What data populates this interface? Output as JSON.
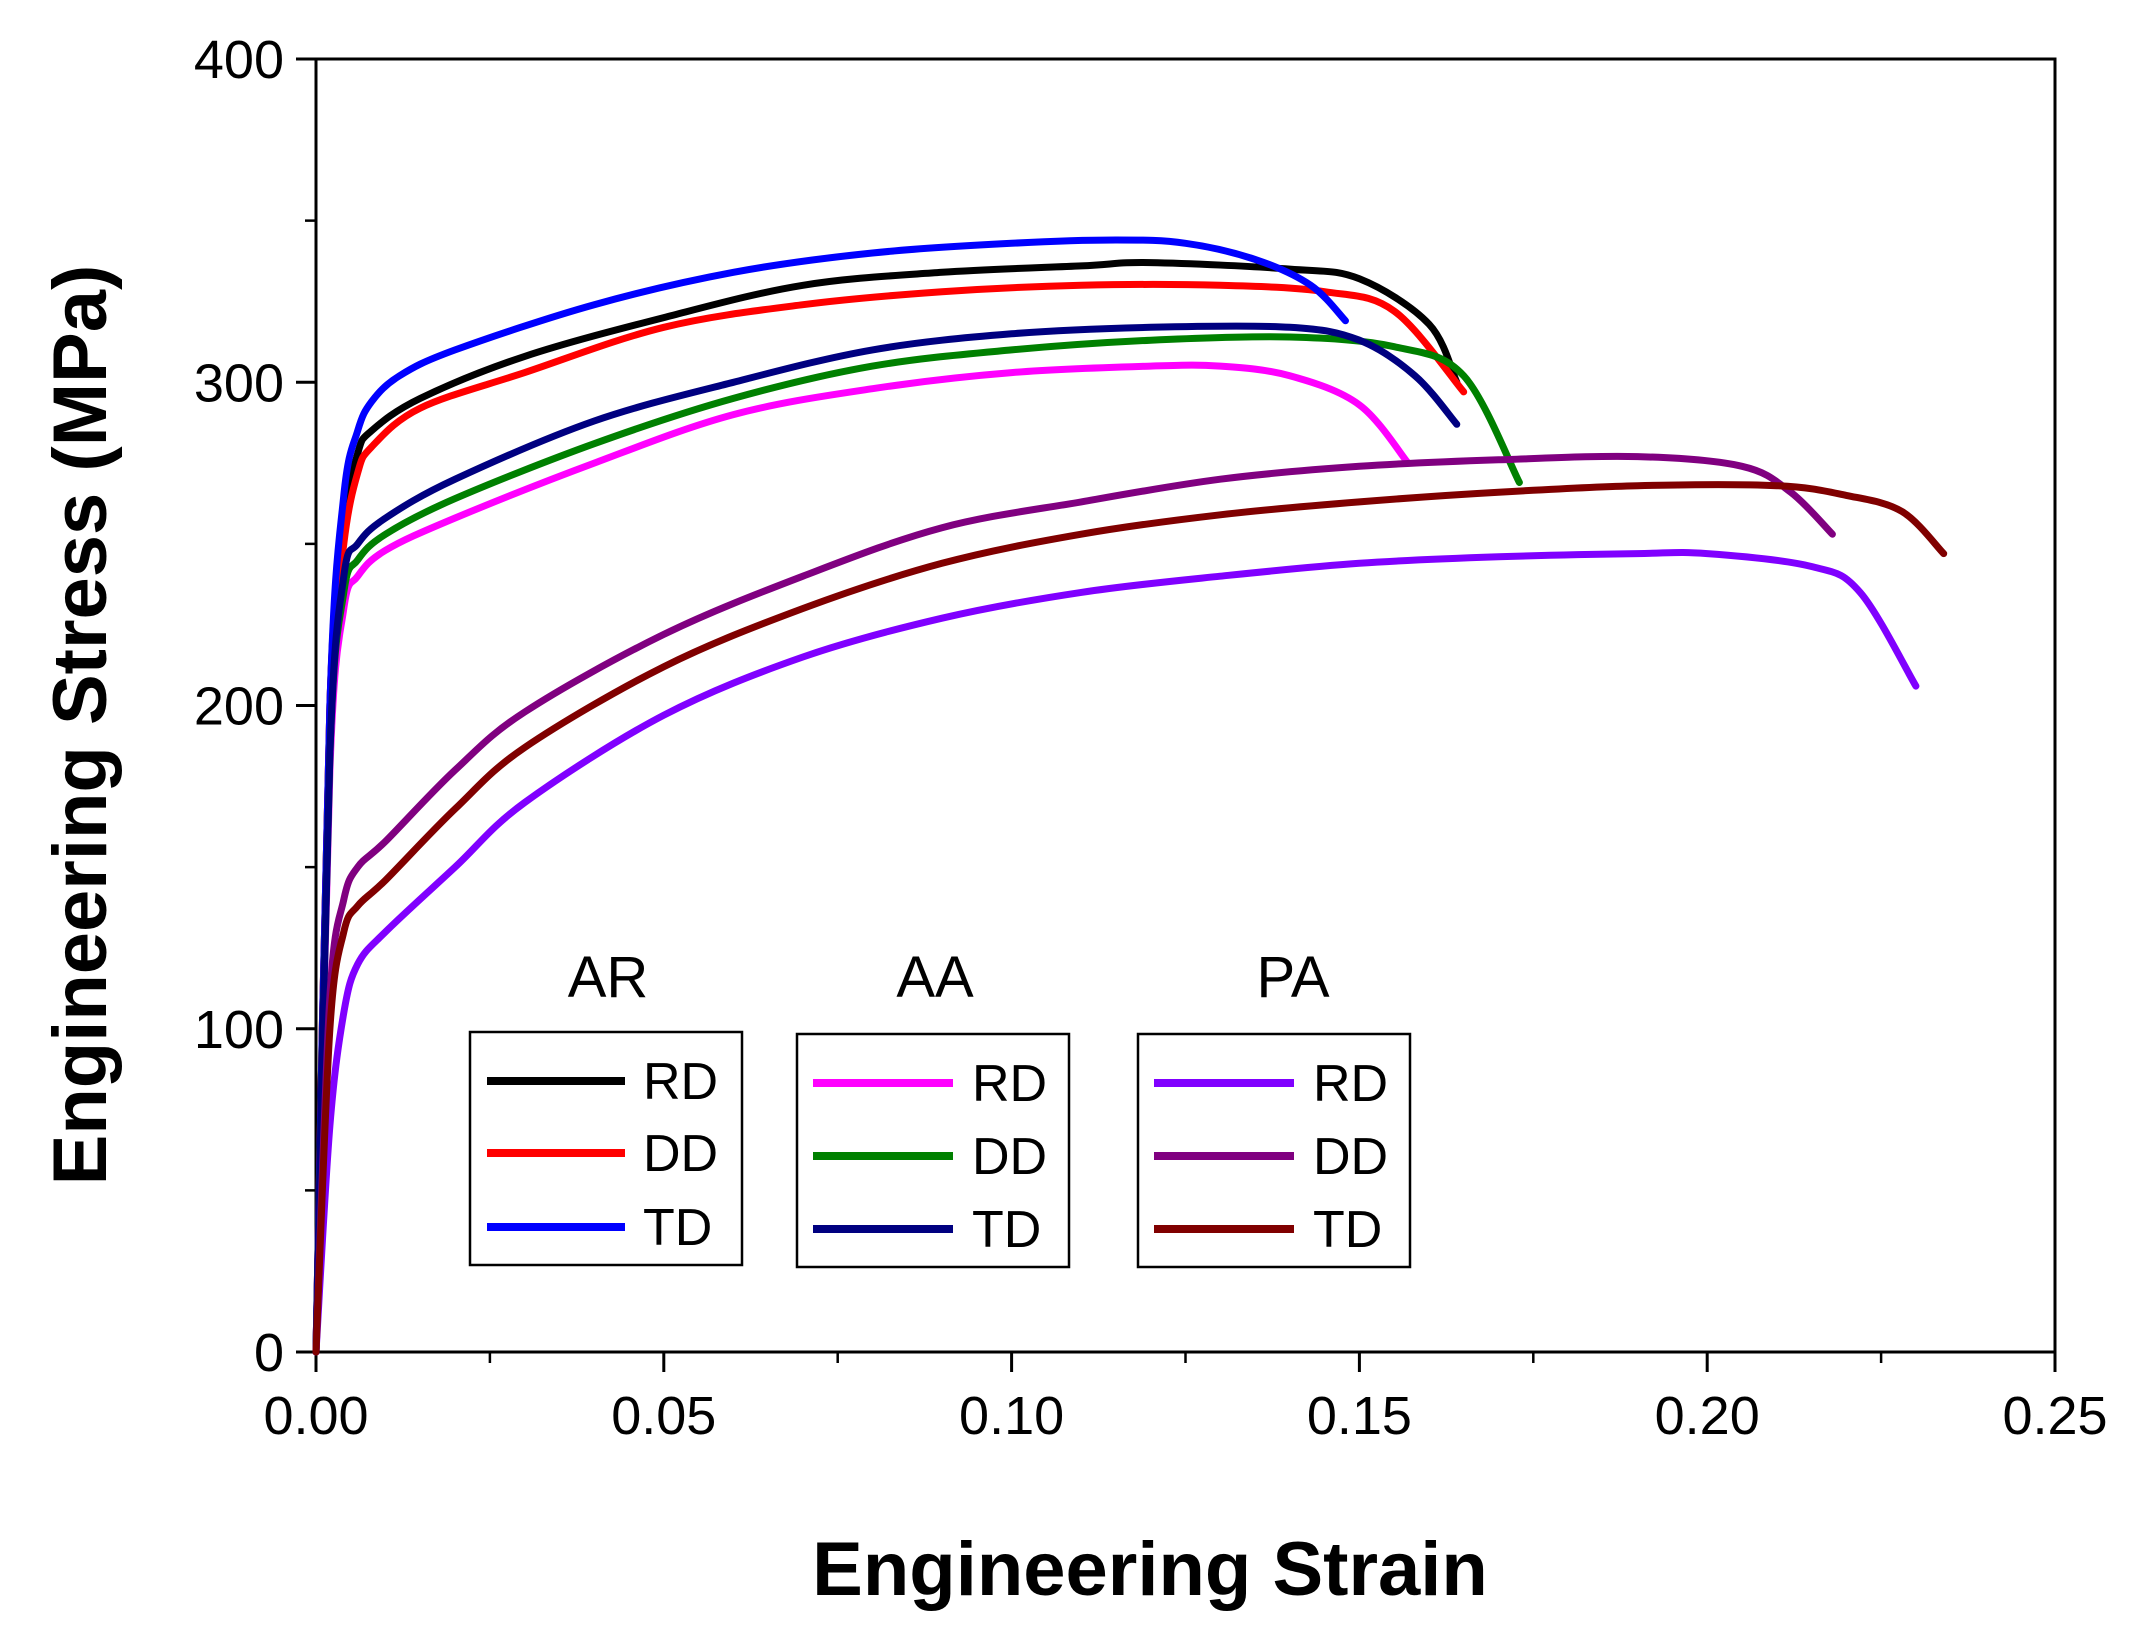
{
  "chart_data": {
    "type": "line",
    "xlabel": "Engineering Strain",
    "ylabel": "Engineering Stress (MPa)",
    "xlim": [
      0,
      0.25
    ],
    "ylim": [
      0,
      400
    ],
    "x_ticks": [
      0,
      0.05,
      0.1,
      0.15,
      0.2,
      0.25
    ],
    "x_tick_labels": [
      "0.00",
      "0.05",
      "0.10",
      "0.15",
      "0.20",
      "0.25"
    ],
    "y_ticks": [
      0,
      100,
      200,
      300,
      400
    ],
    "y_tick_labels": [
      "0",
      "100",
      "200",
      "300",
      "400"
    ],
    "legend_groups": [
      {
        "title": "AR",
        "entries": [
          "RD",
          "DD",
          "TD"
        ]
      },
      {
        "title": "AA",
        "entries": [
          "RD",
          "DD",
          "TD"
        ]
      },
      {
        "title": "PA",
        "entries": [
          "RD",
          "DD",
          "TD"
        ]
      }
    ],
    "series": [
      {
        "group": "AR",
        "name": "RD",
        "color": "#000000",
        "x": [
          0,
          0.002,
          0.004,
          0.006,
          0.008,
          0.015,
          0.03,
          0.05,
          0.07,
          0.09,
          0.11,
          0.12,
          0.14,
          0.15,
          0.16,
          0.164
        ],
        "y": [
          0,
          200,
          255,
          278,
          285,
          295,
          308,
          320,
          330,
          334,
          336,
          337,
          335,
          332,
          318,
          300
        ]
      },
      {
        "group": "AR",
        "name": "DD",
        "color": "#ff0000",
        "x": [
          0,
          0.002,
          0.004,
          0.006,
          0.008,
          0.015,
          0.03,
          0.05,
          0.07,
          0.09,
          0.11,
          0.13,
          0.145,
          0.155,
          0.165
        ],
        "y": [
          0,
          200,
          250,
          272,
          280,
          292,
          303,
          317,
          324,
          328,
          330,
          330,
          328,
          322,
          297
        ]
      },
      {
        "group": "AR",
        "name": "TD",
        "color": "#0000ff",
        "x": [
          0,
          0.002,
          0.004,
          0.006,
          0.008,
          0.012,
          0.02,
          0.04,
          0.06,
          0.08,
          0.1,
          0.115,
          0.125,
          0.135,
          0.143,
          0.148
        ],
        "y": [
          0,
          200,
          265,
          285,
          294,
          302,
          310,
          324,
          334,
          340,
          343,
          344,
          343,
          338,
          330,
          319
        ]
      },
      {
        "group": "AA",
        "name": "RD",
        "color": "#ff00ff",
        "x": [
          0,
          0.002,
          0.004,
          0.006,
          0.01,
          0.02,
          0.04,
          0.06,
          0.08,
          0.1,
          0.12,
          0.13,
          0.14,
          0.15,
          0.157
        ],
        "y": [
          0,
          180,
          230,
          240,
          248,
          258,
          275,
          290,
          298,
          303,
          305,
          305,
          302,
          293,
          275
        ]
      },
      {
        "group": "AA",
        "name": "DD",
        "color": "#008000",
        "x": [
          0,
          0.002,
          0.004,
          0.006,
          0.01,
          0.02,
          0.04,
          0.06,
          0.08,
          0.1,
          0.12,
          0.14,
          0.155,
          0.165,
          0.173
        ],
        "y": [
          0,
          185,
          235,
          245,
          253,
          264,
          281,
          295,
          305,
          310,
          313,
          314,
          311,
          302,
          269
        ]
      },
      {
        "group": "AA",
        "name": "TD",
        "color": "#000080",
        "x": [
          0,
          0.002,
          0.004,
          0.006,
          0.01,
          0.02,
          0.04,
          0.06,
          0.08,
          0.1,
          0.12,
          0.14,
          0.15,
          0.158,
          0.164
        ],
        "y": [
          0,
          185,
          240,
          250,
          258,
          270,
          288,
          300,
          310,
          315,
          317,
          317,
          313,
          302,
          287
        ]
      },
      {
        "group": "PA",
        "name": "RD",
        "color": "#8000ff",
        "x": [
          0,
          0.002,
          0.004,
          0.006,
          0.01,
          0.02,
          0.03,
          0.05,
          0.07,
          0.09,
          0.11,
          0.13,
          0.15,
          0.17,
          0.19,
          0.2,
          0.215,
          0.222,
          0.23
        ],
        "y": [
          0,
          70,
          105,
          120,
          130,
          150,
          170,
          197,
          215,
          227,
          235,
          240,
          244,
          246,
          247,
          247,
          243,
          235,
          206
        ]
      },
      {
        "group": "PA",
        "name": "DD",
        "color": "#800080",
        "x": [
          0,
          0.002,
          0.004,
          0.006,
          0.01,
          0.02,
          0.03,
          0.05,
          0.07,
          0.09,
          0.11,
          0.13,
          0.15,
          0.17,
          0.19,
          0.205,
          0.212,
          0.218
        ],
        "y": [
          0,
          110,
          140,
          150,
          158,
          180,
          198,
          222,
          240,
          255,
          263,
          270,
          274,
          276,
          277,
          274,
          266,
          253
        ]
      },
      {
        "group": "PA",
        "name": "TD",
        "color": "#800000",
        "x": [
          0,
          0.002,
          0.004,
          0.006,
          0.01,
          0.02,
          0.03,
          0.05,
          0.07,
          0.09,
          0.11,
          0.13,
          0.15,
          0.17,
          0.19,
          0.21,
          0.22,
          0.228,
          0.234
        ],
        "y": [
          0,
          100,
          130,
          138,
          146,
          168,
          187,
          212,
          230,
          244,
          253,
          259,
          263,
          266,
          268,
          268,
          265,
          260,
          247
        ]
      }
    ]
  }
}
